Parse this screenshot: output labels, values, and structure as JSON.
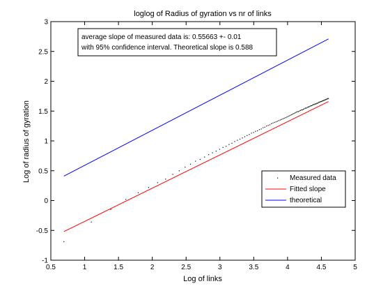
{
  "chart_data": {
    "type": "scatter",
    "title": "loglog of Radius of gyration vs nr of links",
    "xlabel": "Log of links",
    "ylabel": "Log of radius of gyration",
    "xlim": [
      0.5,
      5
    ],
    "ylim": [
      -1,
      3
    ],
    "x_ticks": [
      0.5,
      1,
      1.5,
      2,
      2.5,
      3,
      3.5,
      4,
      4.5,
      5
    ],
    "x_tick_labels": [
      "0.5",
      "1",
      "1.5",
      "2",
      "2.5",
      "3",
      "3.5",
      "4",
      "4.5",
      "5"
    ],
    "y_ticks": [
      -1,
      -0.5,
      0,
      0.5,
      1,
      1.5,
      2,
      2.5,
      3
    ],
    "y_tick_labels": [
      "-1",
      "-0.5",
      "0",
      "0.5",
      "1",
      "1.5",
      "2",
      "2.5",
      "3"
    ],
    "grid": false,
    "legend_position": "lower-right",
    "annotation": {
      "line1": "average slope of measured data is: 0.55663 +- 0.01",
      "line2": "with 95% confidence interval. Theoretical slope is 0.588"
    },
    "series": [
      {
        "name": "Measured data",
        "kind": "points",
        "color": "#000000",
        "x": [
          0.693,
          1.099,
          1.386,
          1.609,
          1.792,
          1.946,
          2.079,
          2.197,
          2.303,
          2.398,
          2.485,
          2.565,
          2.639,
          2.708,
          2.773,
          2.833,
          2.89,
          2.944,
          2.996,
          3.045,
          3.091,
          3.135,
          3.178,
          3.219,
          3.258,
          3.296,
          3.332,
          3.367,
          3.401,
          3.434,
          3.466,
          3.497,
          3.526,
          3.555,
          3.584,
          3.611,
          3.638,
          3.664,
          3.689,
          3.714,
          3.738,
          3.761,
          3.784,
          3.807,
          3.829,
          3.85,
          3.871,
          3.892,
          3.912,
          3.932,
          3.951,
          3.97,
          3.989,
          4.007,
          4.025,
          4.043,
          4.06,
          4.078,
          4.094,
          4.111,
          4.127,
          4.143,
          4.159,
          4.174,
          4.19,
          4.205,
          4.22,
          4.234,
          4.248,
          4.263,
          4.277,
          4.29,
          4.304,
          4.317,
          4.331,
          4.344,
          4.357,
          4.369,
          4.382,
          4.394,
          4.407,
          4.419,
          4.431,
          4.443,
          4.454,
          4.466,
          4.477,
          4.489,
          4.5,
          4.511,
          4.522,
          4.533,
          4.543,
          4.554,
          4.564,
          4.575,
          4.585,
          4.595,
          4.605
        ],
        "y": [
          -0.69,
          -0.36,
          -0.15,
          0.02,
          0.13,
          0.22,
          0.3,
          0.36,
          0.44,
          0.5,
          0.56,
          0.61,
          0.66,
          0.69,
          0.73,
          0.77,
          0.8,
          0.83,
          0.86,
          0.89,
          0.91,
          0.94,
          0.96,
          0.99,
          1.01,
          1.03,
          1.05,
          1.07,
          1.09,
          1.11,
          1.13,
          1.14,
          1.16,
          1.17,
          1.19,
          1.2,
          1.22,
          1.23,
          1.25,
          1.26,
          1.27,
          1.29,
          1.3,
          1.31,
          1.32,
          1.33,
          1.34,
          1.35,
          1.36,
          1.37,
          1.38,
          1.39,
          1.4,
          1.41,
          1.42,
          1.43,
          1.44,
          1.45,
          1.46,
          1.47,
          1.48,
          1.49,
          1.49,
          1.5,
          1.51,
          1.52,
          1.52,
          1.53,
          1.54,
          1.55,
          1.55,
          1.56,
          1.57,
          1.57,
          1.58,
          1.59,
          1.59,
          1.6,
          1.61,
          1.61,
          1.62,
          1.62,
          1.63,
          1.63,
          1.64,
          1.65,
          1.65,
          1.66,
          1.66,
          1.67,
          1.67,
          1.68,
          1.68,
          1.69,
          1.69,
          1.7,
          1.7,
          1.71,
          1.71
        ]
      },
      {
        "name": "Fitted slope",
        "kind": "line",
        "color": "#ff0000",
        "x": [
          0.693,
          4.605
        ],
        "y": [
          -0.52,
          1.66
        ]
      },
      {
        "name": "theoretical",
        "kind": "line",
        "color": "#0000ff",
        "x": [
          0.693,
          4.605
        ],
        "y": [
          0.41,
          2.71
        ]
      }
    ]
  }
}
